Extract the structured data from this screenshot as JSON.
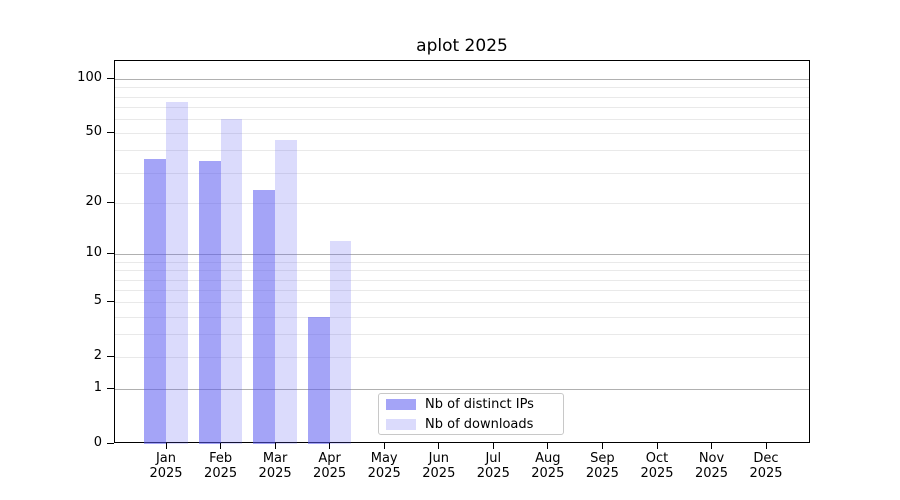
{
  "title": "aplot 2025",
  "chart_data": {
    "type": "bar",
    "title": "aplot 2025",
    "categories": [
      "Jan",
      "Feb",
      "Mar",
      "Apr",
      "May",
      "Jun",
      "Jul",
      "Aug",
      "Sep",
      "Oct",
      "Nov",
      "Dec"
    ],
    "year": "2025",
    "series": [
      {
        "name": "Nb of distinct IPs",
        "color": "rgba(90,90,240,0.55)",
        "values": [
          36,
          35,
          24,
          4,
          0,
          0,
          0,
          0,
          0,
          0,
          0,
          0
        ]
      },
      {
        "name": "Nb of downloads",
        "color": "rgba(90,90,240,0.22)",
        "values": [
          75,
          60,
          46,
          12,
          0,
          0,
          0,
          0,
          0,
          0,
          0,
          0
        ]
      }
    ],
    "yscale": "log1p",
    "yticks": [
      0,
      1,
      2,
      5,
      10,
      20,
      50,
      100
    ],
    "minor_gridlines": [
      2,
      3,
      4,
      5,
      6,
      7,
      8,
      9,
      20,
      30,
      40,
      50,
      60,
      70,
      80,
      90
    ],
    "major_gridlines": [
      1,
      10,
      100
    ],
    "ylim": [
      0,
      126
    ],
    "grid": true,
    "legend_position": "lower center"
  },
  "colors": {
    "background": "#ffffff",
    "spine": "#000000",
    "text": "#000000",
    "major_grid": "#b0b0b0",
    "minor_grid": "#e9e9e9",
    "legend_border": "#c8c8c8"
  }
}
